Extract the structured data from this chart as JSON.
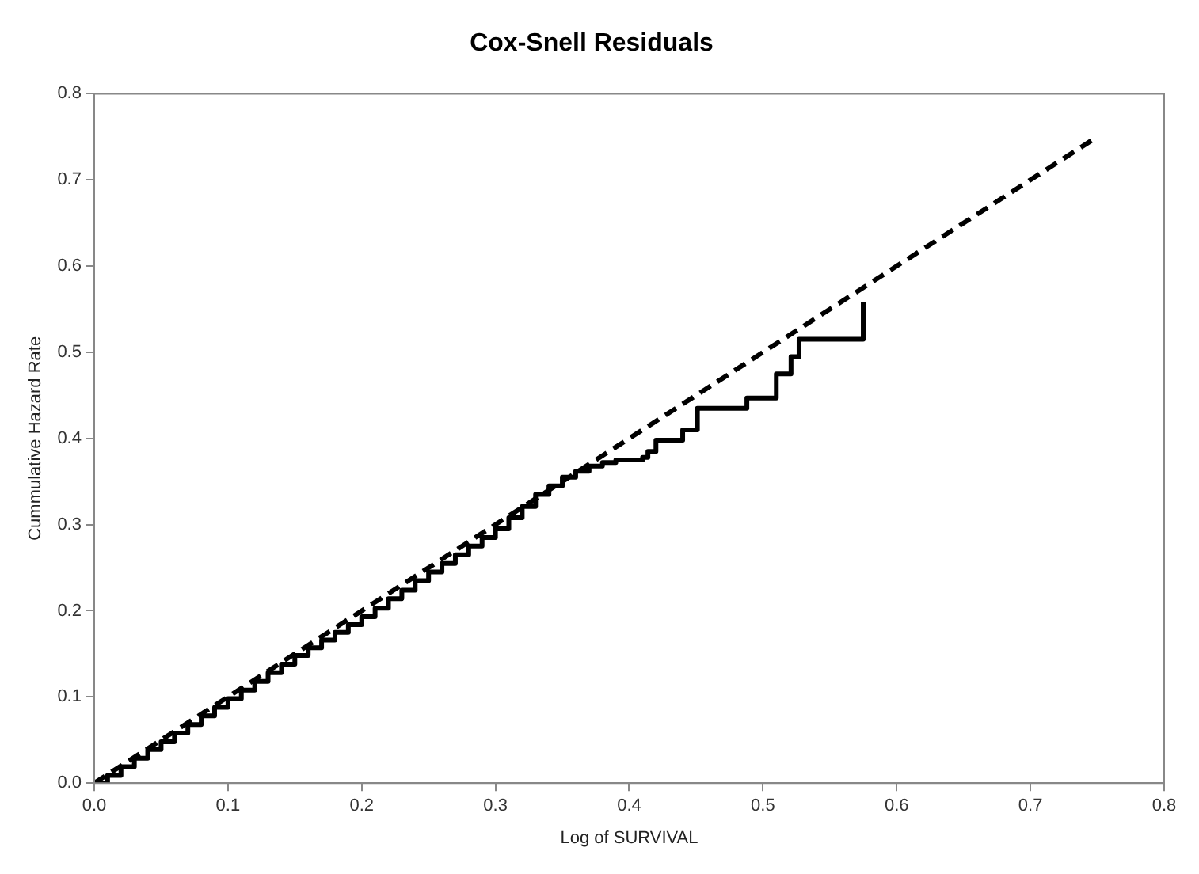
{
  "chart_data": {
    "type": "line",
    "title": "Cox-Snell Residuals",
    "xlabel": "Log of SURVIVAL",
    "ylabel": "Cummulative Hazard Rate",
    "xlim": [
      0,
      0.8
    ],
    "xticks": [
      {
        "value": 0,
        "label": "0.0"
      },
      0.1,
      0.2,
      0.3,
      0.4,
      0.5,
      0.6,
      0.7,
      0.8
    ],
    "ylim": [
      0,
      0.8
    ],
    "yticks": [
      {
        "value": 0,
        "label": "0.0"
      },
      0.1,
      0.2,
      0.3,
      0.4,
      0.5,
      0.6,
      0.7,
      0.8
    ],
    "grid": false,
    "legend": false,
    "marker": "none",
    "series": [
      {
        "type": "step",
        "color": "#000000",
        "line_style": "solid",
        "x": [
          0,
          0.01,
          0.02,
          0.03,
          0.04,
          0.05,
          0.06,
          0.07,
          0.08,
          0.09,
          0.1,
          0.11,
          0.12,
          0.13,
          0.14,
          0.15,
          0.16,
          0.17,
          0.18,
          0.19,
          0.2,
          0.21,
          0.22,
          0.23,
          0.24,
          0.25,
          0.26,
          0.27,
          0.28,
          0.29,
          0.3,
          0.31,
          0.32,
          0.33,
          0.34,
          0.35,
          0.36,
          0.37,
          0.38,
          0.39,
          0.41,
          0.414,
          0.42,
          0.44,
          0.451,
          0.488,
          0.51,
          0.521,
          0.527,
          0.575
        ],
        "values": [
          0,
          0.009,
          0.019,
          0.029,
          0.039,
          0.048,
          0.058,
          0.068,
          0.078,
          0.088,
          0.098,
          0.108,
          0.118,
          0.128,
          0.138,
          0.148,
          0.157,
          0.166,
          0.175,
          0.184,
          0.193,
          0.203,
          0.214,
          0.224,
          0.235,
          0.245,
          0.255,
          0.265,
          0.275,
          0.285,
          0.295,
          0.308,
          0.321,
          0.335,
          0.345,
          0.355,
          0.362,
          0.368,
          0.372,
          0.375,
          0.378,
          0.385,
          0.398,
          0.41,
          0.435,
          0.447,
          0.475,
          0.495,
          0.515,
          0.558
        ]
      },
      {
        "type": "line",
        "color": "#000000",
        "line_style": "dashed",
        "x": [
          0,
          0.749
        ],
        "values": [
          0,
          0.749
        ]
      }
    ]
  }
}
